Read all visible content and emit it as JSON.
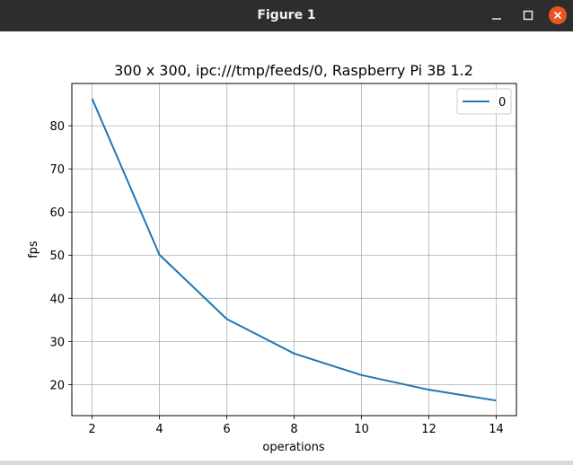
{
  "window": {
    "title": "Figure 1"
  },
  "colors": {
    "titlebar": "#2d2d2d",
    "close_button": "#e95420",
    "series_line": "#1f77b4",
    "grid": "#b0b0b0"
  },
  "chart_data": {
    "type": "line",
    "title": "300 x 300, ipc:///tmp/feeds/0,  Raspberry Pi 3B 1.2",
    "xlabel": "operations",
    "ylabel": "fps",
    "x": [
      2,
      4,
      6,
      8,
      10,
      12,
      14
    ],
    "series": [
      {
        "name": "0",
        "values": [
          86.3,
          50.1,
          35.2,
          27.2,
          22.2,
          18.8,
          16.3
        ]
      }
    ],
    "xlim": [
      1.4,
      14.6
    ],
    "ylim": [
      12.8,
      89.8
    ],
    "xticks": [
      2,
      4,
      6,
      8,
      10,
      12,
      14
    ],
    "yticks": [
      20,
      30,
      40,
      50,
      60,
      70,
      80
    ],
    "grid": true,
    "legend_position": "top-right"
  }
}
